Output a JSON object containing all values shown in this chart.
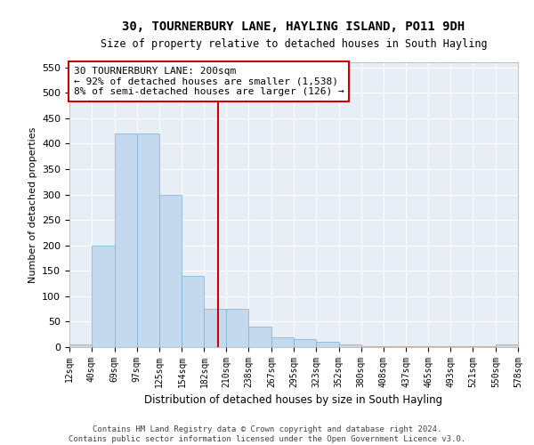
{
  "title": "30, TOURNERBURY LANE, HAYLING ISLAND, PO11 9DH",
  "subtitle": "Size of property relative to detached houses in South Hayling",
  "xlabel": "Distribution of detached houses by size in South Hayling",
  "ylabel": "Number of detached properties",
  "bar_color": "#c5d9ee",
  "bar_edge_color": "#7aafd4",
  "background_color": "#e8eef6",
  "grid_color": "#ffffff",
  "annotation_box_color": "#cc0000",
  "vline_color": "#cc0000",
  "annotation_text": "30 TOURNERBURY LANE: 200sqm\n← 92% of detached houses are smaller (1,538)\n8% of semi-detached houses are larger (126) →",
  "property_size": 200,
  "bin_edges": [
    12,
    40,
    69,
    97,
    125,
    154,
    182,
    210,
    238,
    267,
    295,
    323,
    352,
    380,
    408,
    437,
    465,
    493,
    521,
    550,
    578
  ],
  "bin_labels": [
    "12sqm",
    "40sqm",
    "69sqm",
    "97sqm",
    "125sqm",
    "154sqm",
    "182sqm",
    "210sqm",
    "238sqm",
    "267sqm",
    "295sqm",
    "323sqm",
    "352sqm",
    "380sqm",
    "408sqm",
    "437sqm",
    "465sqm",
    "493sqm",
    "521sqm",
    "550sqm",
    "578sqm"
  ],
  "bar_heights": [
    5,
    200,
    420,
    420,
    300,
    140,
    75,
    75,
    40,
    20,
    15,
    10,
    5,
    2,
    2,
    2,
    2,
    2,
    2,
    5
  ],
  "ylim": [
    0,
    560
  ],
  "yticks": [
    0,
    50,
    100,
    150,
    200,
    250,
    300,
    350,
    400,
    450,
    500,
    550
  ],
  "footnote": "Contains HM Land Registry data © Crown copyright and database right 2024.\nContains public sector information licensed under the Open Government Licence v3.0."
}
